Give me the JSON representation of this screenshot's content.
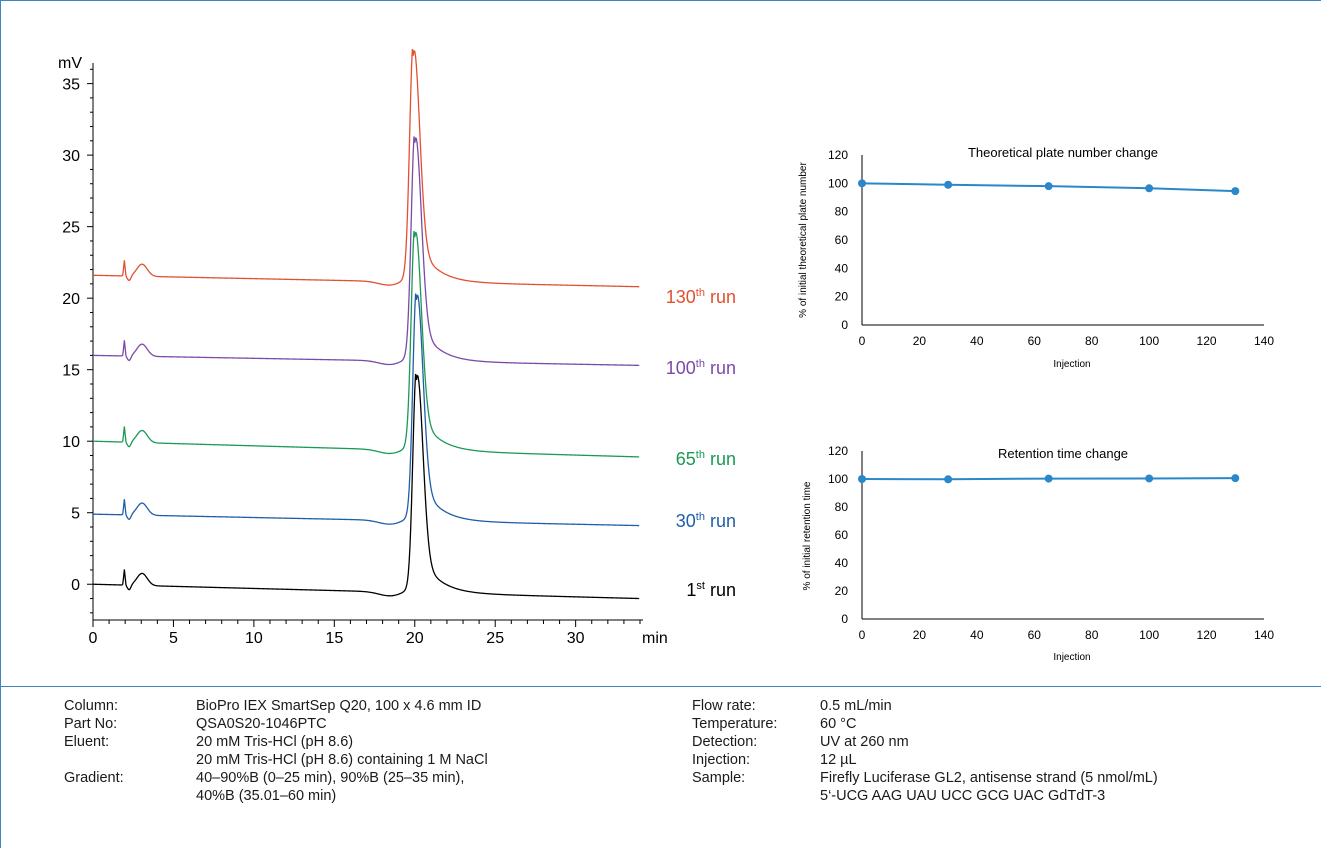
{
  "chromatogram": {
    "y_unit": "mV",
    "x_unit": "min",
    "y_ticks": [
      "0",
      "5",
      "10",
      "15",
      "20",
      "25",
      "30",
      "35"
    ],
    "x_ticks": [
      "0",
      "5",
      "10",
      "15",
      "20",
      "25",
      "30"
    ]
  },
  "small_plots": [
    {
      "title": "Theoretical plate number change",
      "ylabel": "% of initial theoretical plate number",
      "xlabel": "Injection",
      "y_ticks": [
        "0",
        "20",
        "40",
        "60",
        "80",
        "100",
        "120"
      ],
      "x_ticks": [
        "0",
        "20",
        "40",
        "60",
        "80",
        "100",
        "120",
        "140"
      ]
    },
    {
      "title": "Retention time change",
      "ylabel": "% of initial retention time",
      "xlabel": "Injection",
      "y_ticks": [
        "0",
        "20",
        "40",
        "60",
        "80",
        "100",
        "120"
      ],
      "x_ticks": [
        "0",
        "20",
        "40",
        "60",
        "80",
        "100",
        "120",
        "140"
      ]
    }
  ],
  "chart_data": [
    {
      "type": "line",
      "xlabel": "min",
      "ylabel": "mV",
      "xlim": [
        0,
        34
      ],
      "ylim": [
        -2.5,
        37
      ],
      "x_ticks": [
        0,
        5,
        10,
        15,
        20,
        25,
        30
      ],
      "y_ticks": [
        0,
        5,
        10,
        15,
        20,
        25,
        30,
        35
      ],
      "grid": false,
      "series": [
        {
          "name": "1st run",
          "label_base": "1",
          "label_sup": "st",
          "label_tail": " run",
          "color": "#000000",
          "baseline_start": 0.0,
          "baseline_end": -1.0,
          "peak_time": 20.1,
          "peak_apex": 14.3
        },
        {
          "name": "30th run",
          "label_base": "30",
          "label_sup": "th",
          "label_tail": " run",
          "color": "#1f5fa8",
          "baseline_start": 4.9,
          "baseline_end": 4.1,
          "peak_time": 20.1,
          "peak_apex": 19.9
        },
        {
          "name": "65th run",
          "label_base": "65",
          "label_sup": "th",
          "label_tail": " run",
          "color": "#1a9a55",
          "baseline_start": 10.0,
          "baseline_end": 8.9,
          "peak_time": 20.0,
          "peak_apex": 24.3
        },
        {
          "name": "100th run",
          "label_base": "100",
          "label_sup": "th",
          "label_tail": " run",
          "color": "#7b4aa8",
          "baseline_start": 16.0,
          "baseline_end": 15.3,
          "peak_time": 20.0,
          "peak_apex": 30.9
        },
        {
          "name": "130th run",
          "label_base": "130",
          "label_sup": "th",
          "label_tail": " run",
          "color": "#e2502f",
          "baseline_start": 21.6,
          "baseline_end": 20.8,
          "peak_time": 19.9,
          "peak_apex": 37.0
        }
      ]
    },
    {
      "type": "line",
      "title": "Theoretical plate number change",
      "xlabel": "Injection",
      "ylabel": "% of initial theoretical plate number",
      "xlim": [
        0,
        140
      ],
      "ylim": [
        0,
        120
      ],
      "color": "#2a87c9",
      "x": [
        0,
        30,
        65,
        100,
        130
      ],
      "y": [
        100,
        99,
        98,
        96.5,
        94.5
      ]
    },
    {
      "type": "line",
      "title": "Retention time change",
      "xlabel": "Injection",
      "ylabel": "% of initial retention time",
      "xlim": [
        0,
        140
      ],
      "ylim": [
        0,
        120
      ],
      "color": "#2a87c9",
      "x": [
        0,
        30,
        65,
        100,
        130
      ],
      "y": [
        100,
        99.8,
        100.3,
        100.4,
        100.6
      ]
    }
  ],
  "conditions": {
    "left": [
      {
        "label": "Column:",
        "lines": [
          "BioPro IEX SmartSep Q20, 100 x 4.6 mm ID"
        ]
      },
      {
        "label": "Part No:",
        "lines": [
          "QSA0S20-1046PTC"
        ]
      },
      {
        "label": "Eluent:",
        "lines": [
          "20 mM Tris-HCl (pH 8.6)",
          "20 mM Tris-HCl (pH 8.6) containing 1 M NaCl"
        ]
      },
      {
        "label": "Gradient:",
        "lines": [
          "40–90%B (0–25 min), 90%B (25–35 min),",
          "40%B (35.01–60 min)"
        ]
      }
    ],
    "right": [
      {
        "label": "Flow rate:",
        "lines": [
          "0.5 mL/min"
        ]
      },
      {
        "label": "Temperature:",
        "lines": [
          "60 °C"
        ]
      },
      {
        "label": "Detection:",
        "lines": [
          "UV at 260 nm"
        ]
      },
      {
        "label": "Injection:",
        "lines": [
          "12 µL"
        ]
      },
      {
        "label": "Sample:",
        "lines": [
          "Firefly Luciferase GL2, antisense strand (5 nmol/mL)",
          "5‘-UCG AAG UAU UCC GCG UAC GdTdT-3"
        ]
      }
    ]
  }
}
